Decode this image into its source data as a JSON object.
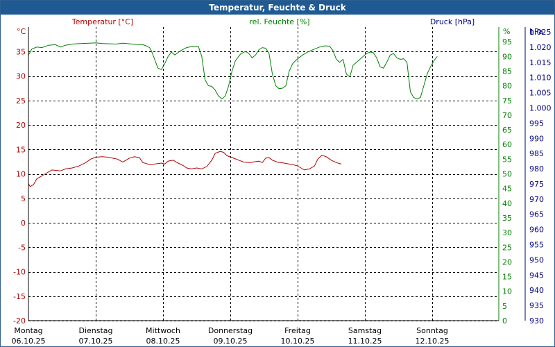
{
  "window": {
    "title": "Temperatur, Feuchte & Druck"
  },
  "colors": {
    "temperature": "#b00000",
    "humidity": "#008000",
    "pressure": "#000080",
    "titlebar": "#1f5a92"
  },
  "chart_data": {
    "type": "line",
    "title": "Temperatur, Feuchte & Druck",
    "grid": true,
    "legend": "top",
    "axes": {
      "left": {
        "label": "Temperatur [°C]",
        "unit": "°C",
        "min": -20,
        "max": 40,
        "ticks": [
          -20,
          -15,
          -10,
          -5,
          0,
          5,
          10,
          15,
          20,
          25,
          30,
          35
        ]
      },
      "right1": {
        "label": "rel. Feuchte [%]",
        "unit": "%",
        "min": 0,
        "max": 100,
        "ticks": [
          0,
          5,
          10,
          15,
          20,
          25,
          30,
          35,
          40,
          45,
          50,
          55,
          60,
          65,
          70,
          75,
          80,
          85,
          90,
          95
        ]
      },
      "right2": {
        "label": "Druck [hPa]",
        "unit": "hPa",
        "min": 930,
        "max": 1030,
        "ticks": [
          "930",
          "935",
          "940",
          "945",
          "950",
          "955",
          "960",
          "965",
          "970",
          "975",
          "980",
          "985",
          "990",
          "995",
          "1.000",
          "1.005",
          "1.010",
          "1.015",
          "1.020",
          "1.025"
        ]
      }
    },
    "x_categories": [
      {
        "day": "Montag",
        "date": "06.10.25"
      },
      {
        "day": "Dienstag",
        "date": "07.10.25"
      },
      {
        "day": "Mittwoch",
        "date": "08.10.25"
      },
      {
        "day": "Donnerstag",
        "date": "09.10.25"
      },
      {
        "day": "Freitag",
        "date": "10.10.25"
      },
      {
        "day": "Samstag",
        "date": "11.10.25"
      },
      {
        "day": "Sonntag",
        "date": "12.10.25"
      }
    ],
    "x_range_days": [
      0,
      7
    ],
    "series": [
      {
        "name": "Temperatur [°C]",
        "axis": "left",
        "points": [
          [
            0.0,
            8.0
          ],
          [
            0.05,
            7.4
          ],
          [
            0.15,
            7.8
          ],
          [
            0.25,
            9.0
          ],
          [
            0.5,
            10.0
          ],
          [
            0.7,
            10.8
          ],
          [
            0.95,
            10.6
          ],
          [
            1.1,
            11.0
          ],
          [
            1.3,
            11.2
          ],
          [
            1.5,
            11.6
          ],
          [
            1.7,
            12.3
          ],
          [
            1.85,
            13.0
          ],
          [
            2.0,
            13.4
          ],
          [
            2.2,
            13.5
          ],
          [
            2.35,
            13.4
          ],
          [
            2.5,
            13.2
          ],
          [
            2.65,
            13.0
          ],
          [
            2.8,
            12.4
          ],
          [
            2.9,
            12.8
          ],
          [
            3.0,
            13.2
          ],
          [
            3.15,
            13.5
          ],
          [
            3.3,
            13.3
          ],
          [
            3.4,
            12.3
          ],
          [
            3.5,
            12.1
          ],
          [
            3.6,
            11.9
          ],
          [
            3.75,
            12.0
          ],
          [
            3.95,
            12.2
          ],
          [
            4.05,
            12.0
          ],
          [
            4.15,
            12.6
          ],
          [
            4.3,
            12.8
          ],
          [
            4.45,
            12.2
          ],
          [
            4.6,
            11.7
          ],
          [
            4.7,
            11.2
          ],
          [
            4.85,
            11.0
          ],
          [
            5.0,
            11.2
          ],
          [
            5.15,
            11.0
          ],
          [
            5.3,
            11.5
          ],
          [
            5.45,
            12.8
          ],
          [
            5.55,
            14.2
          ],
          [
            5.7,
            14.6
          ],
          [
            5.8,
            14.4
          ],
          [
            5.9,
            13.7
          ],
          [
            6.1,
            13.2
          ],
          [
            6.25,
            12.8
          ],
          [
            6.4,
            12.4
          ],
          [
            6.6,
            12.3
          ],
          [
            6.75,
            12.5
          ],
          [
            6.85,
            12.6
          ],
          [
            6.95,
            12.3
          ],
          [
            7.05,
            13.2
          ],
          [
            7.15,
            13.3
          ],
          [
            7.25,
            12.8
          ],
          [
            7.4,
            12.4
          ],
          [
            7.6,
            12.2
          ],
          [
            7.75,
            12.0
          ],
          [
            7.9,
            11.8
          ],
          [
            8.0,
            11.6
          ],
          [
            8.1,
            11.2
          ],
          [
            8.2,
            10.8
          ],
          [
            8.35,
            11.0
          ],
          [
            8.5,
            11.6
          ],
          [
            8.6,
            13.0
          ],
          [
            8.72,
            13.8
          ],
          [
            8.85,
            13.5
          ],
          [
            9.0,
            12.8
          ],
          [
            9.15,
            12.3
          ],
          [
            9.3,
            12.0
          ]
        ]
      },
      {
        "name": "rel. Feuchte [%]",
        "axis": "right1",
        "points": [
          [
            0.0,
            90.5
          ],
          [
            0.1,
            92.5
          ],
          [
            0.25,
            93.2
          ],
          [
            0.4,
            93.0
          ],
          [
            0.6,
            93.8
          ],
          [
            0.8,
            94.0
          ],
          [
            0.95,
            93.2
          ],
          [
            1.1,
            93.8
          ],
          [
            1.3,
            94.2
          ],
          [
            1.55,
            94.4
          ],
          [
            1.8,
            94.5
          ],
          [
            2.0,
            94.6
          ],
          [
            2.2,
            94.4
          ],
          [
            2.4,
            94.3
          ],
          [
            2.6,
            94.2
          ],
          [
            2.8,
            94.5
          ],
          [
            3.0,
            94.3
          ],
          [
            3.2,
            94.1
          ],
          [
            3.4,
            94.0
          ],
          [
            3.5,
            93.6
          ],
          [
            3.6,
            93.0
          ],
          [
            3.65,
            92.0
          ],
          [
            3.75,
            89.0
          ],
          [
            3.85,
            86.0
          ],
          [
            3.95,
            85.5
          ],
          [
            4.05,
            87.5
          ],
          [
            4.15,
            90.0
          ],
          [
            4.25,
            91.5
          ],
          [
            4.35,
            90.5
          ],
          [
            4.5,
            91.8
          ],
          [
            4.7,
            93.0
          ],
          [
            4.9,
            93.5
          ],
          [
            5.05,
            93.4
          ],
          [
            5.15,
            90.0
          ],
          [
            5.25,
            82.0
          ],
          [
            5.35,
            80.0
          ],
          [
            5.45,
            79.8
          ],
          [
            5.55,
            78.5
          ],
          [
            5.65,
            76.5
          ],
          [
            5.75,
            75.5
          ],
          [
            5.85,
            76.5
          ],
          [
            5.95,
            80.0
          ],
          [
            6.05,
            85.0
          ],
          [
            6.15,
            88.5
          ],
          [
            6.3,
            90.8
          ],
          [
            6.45,
            91.7
          ],
          [
            6.55,
            91.0
          ],
          [
            6.65,
            89.5
          ],
          [
            6.75,
            90.5
          ],
          [
            6.85,
            92.3
          ],
          [
            6.95,
            93.0
          ],
          [
            7.05,
            92.8
          ],
          [
            7.15,
            91.0
          ],
          [
            7.25,
            84.0
          ],
          [
            7.35,
            80.0
          ],
          [
            7.45,
            79.0
          ],
          [
            7.55,
            79.2
          ],
          [
            7.65,
            80.0
          ],
          [
            7.75,
            85.0
          ],
          [
            7.85,
            87.5
          ],
          [
            7.95,
            88.7
          ],
          [
            8.15,
            90.5
          ],
          [
            8.3,
            91.5
          ],
          [
            8.5,
            92.5
          ],
          [
            8.65,
            93.2
          ],
          [
            8.8,
            93.6
          ],
          [
            8.95,
            93.5
          ],
          [
            9.05,
            92.0
          ],
          [
            9.15,
            89.0
          ],
          [
            9.25,
            88.0
          ],
          [
            9.35,
            89.0
          ],
          [
            9.45,
            84.0
          ],
          [
            9.55,
            83.0
          ],
          [
            9.65,
            87.0
          ],
          [
            9.8,
            88.5
          ],
          [
            9.95,
            90.0
          ],
          [
            10.05,
            91.0
          ],
          [
            10.15,
            91.5
          ],
          [
            10.25,
            91.3
          ],
          [
            10.35,
            89.5
          ],
          [
            10.45,
            86.5
          ],
          [
            10.55,
            86.0
          ],
          [
            10.65,
            88.0
          ],
          [
            10.75,
            90.5
          ],
          [
            10.85,
            91.0
          ],
          [
            10.95,
            89.5
          ],
          [
            11.05,
            89.0
          ],
          [
            11.15,
            89.2
          ],
          [
            11.25,
            88.0
          ],
          [
            11.35,
            78.0
          ],
          [
            11.45,
            76.0
          ],
          [
            11.55,
            75.5
          ],
          [
            11.65,
            76.0
          ],
          [
            11.75,
            80.0
          ],
          [
            11.85,
            84.0
          ],
          [
            11.95,
            86.5
          ],
          [
            12.05,
            88.5
          ],
          [
            12.15,
            90.0
          ]
        ]
      }
    ]
  }
}
